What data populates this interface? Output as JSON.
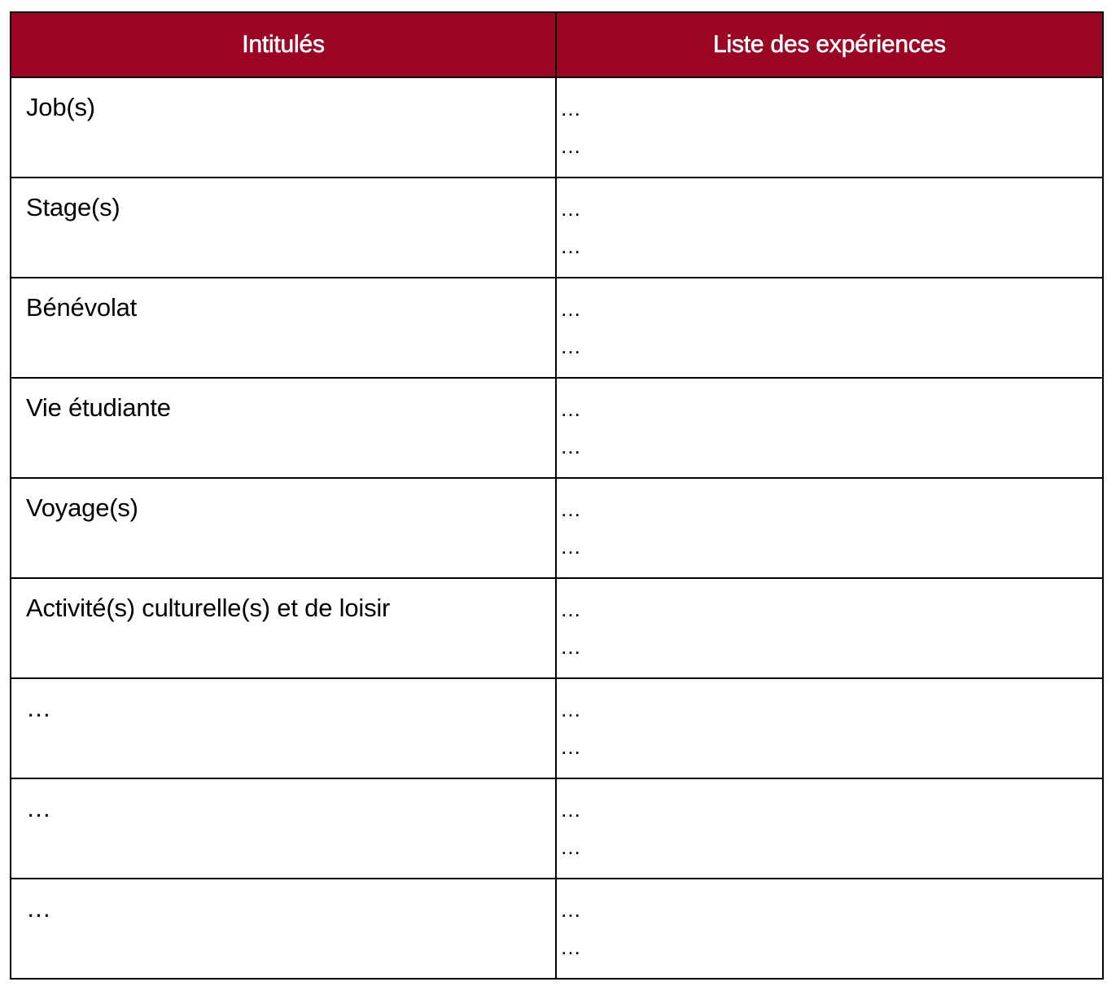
{
  "colors": {
    "header_background": "#9b0625",
    "header_text": "#ffffff",
    "grid_lines": "#000000"
  },
  "table": {
    "headers": [
      "Intitulés",
      "Liste des expériences"
    ],
    "rows": [
      {
        "label": "Job(s)",
        "entries": [
          "…",
          "…"
        ]
      },
      {
        "label": "Stage(s)",
        "entries": [
          "…",
          "…"
        ]
      },
      {
        "label": "Bénévolat",
        "entries": [
          "…",
          "…"
        ]
      },
      {
        "label": "Vie étudiante",
        "entries": [
          "…",
          "…"
        ]
      },
      {
        "label": "Voyage(s)",
        "entries": [
          "…",
          "…"
        ]
      },
      {
        "label": "Activité(s) culturelle(s) et de loisir",
        "entries": [
          "…",
          "…"
        ]
      },
      {
        "label": "…",
        "entries": [
          "…",
          "…"
        ]
      },
      {
        "label": "…",
        "entries": [
          "…",
          "…"
        ]
      },
      {
        "label": "…",
        "entries": [
          "…",
          "…"
        ]
      }
    ]
  }
}
